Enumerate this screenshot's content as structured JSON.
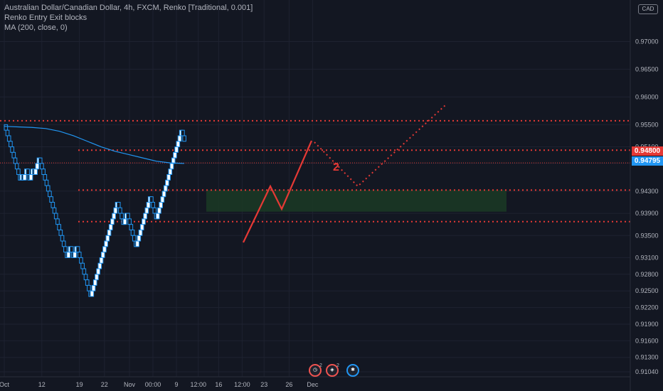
{
  "legend": {
    "title": "Australian Dollar/Canadian Dollar, 4h, FXCM, Renko [Traditional, 0.001]",
    "indicator1": "Renko Entry Exit blocks",
    "indicator2": "MA (200, close, 0)"
  },
  "currency": "CAD",
  "price_tags": {
    "last": "0.94800",
    "ma": "0.94795"
  },
  "annotation_label": "2",
  "events": [
    {
      "icon": "calendar-event-icon",
      "count": "2"
    },
    {
      "icon": "news-event-icon",
      "count": "2"
    },
    {
      "icon": "flag-event-icon",
      "count": ""
    }
  ],
  "colors": {
    "background": "#131722",
    "bull_brick_fill": "#ffffff",
    "bear_brick_fill": "#131722",
    "brick_border": "#2196f3",
    "ma_line": "#2196f3",
    "annotation": "#e53935",
    "zone": "#1b3a24",
    "grid": "#1e2230"
  },
  "chart_data": {
    "type": "renko",
    "title": "Australian Dollar/Canadian Dollar, 4h, FXCM, Renko [Traditional, 0.001]",
    "brick_size": 0.001,
    "ylim": [
      0.9095,
      0.9775
    ],
    "y_ticks": [
      "0.97000",
      "0.96500",
      "0.96000",
      "0.95500",
      "0.95100",
      "0.94800",
      "0.94300",
      "0.93900",
      "0.93500",
      "0.93100",
      "0.92800",
      "0.92500",
      "0.92200",
      "0.91900",
      "0.91600",
      "0.91300",
      "0.91040"
    ],
    "y_tick_values": [
      0.97,
      0.965,
      0.96,
      0.955,
      0.951,
      0.948,
      0.943,
      0.939,
      0.935,
      0.931,
      0.928,
      0.925,
      0.922,
      0.919,
      0.916,
      0.913,
      0.9104
    ],
    "x_ticks": [
      {
        "label": "Oct",
        "brick": 0
      },
      {
        "label": "12",
        "brick": 24
      },
      {
        "label": "19",
        "brick": 48
      },
      {
        "label": "22",
        "brick": 64
      },
      {
        "label": "Nov",
        "brick": 80
      },
      {
        "label": "00:00",
        "brick": 95
      },
      {
        "label": "9",
        "brick": 110
      },
      {
        "label": "12:00",
        "brick": 124
      },
      {
        "label": "16",
        "brick": 137
      },
      {
        "label": "12:00",
        "brick": 152
      },
      {
        "label": "23",
        "brick": 166
      },
      {
        "label": "26",
        "brick": 182
      },
      {
        "label": "Dec",
        "brick": 197
      }
    ],
    "bricks": [
      {
        "start": 0.955,
        "dir": "down",
        "moves": [
          -1,
          -1,
          -1,
          -1,
          -1,
          -1,
          -1,
          -1,
          -1,
          -1,
          1,
          -1,
          1,
          1,
          -1,
          -1,
          1,
          1,
          -1,
          1,
          1,
          1,
          -1,
          -1,
          -1,
          -1,
          -1,
          -1,
          -1,
          -1,
          -1,
          -1,
          -1,
          -1,
          -1,
          -1,
          -1,
          -1,
          -1,
          -1,
          1,
          1,
          -1,
          -1,
          1,
          1,
          -1,
          -1,
          -1,
          -1,
          -1,
          -1,
          -1,
          -1,
          -1,
          1,
          1,
          1,
          1,
          1,
          1,
          1,
          1,
          1,
          1,
          1,
          1,
          1,
          1,
          1,
          1,
          1,
          -1,
          -1,
          -1,
          -1,
          1,
          1,
          -1,
          -1,
          -1,
          -1,
          -1,
          -1,
          1,
          1,
          1,
          1,
          1,
          1,
          1,
          1,
          1,
          -1,
          -1,
          -1,
          -1,
          1,
          1,
          1,
          1,
          1,
          1,
          1,
          1,
          1,
          1,
          1,
          1,
          1,
          1,
          1,
          1,
          -1,
          -1
        ]
      }
    ],
    "ma_200": [
      0.9547,
      0.9546,
      0.9545,
      0.9543,
      0.9538,
      0.953,
      0.952,
      0.951,
      0.9502,
      0.9496,
      0.949,
      0.9484,
      0.9481,
      0.948
    ],
    "horizontal_levels": [
      0.9557,
      0.9504,
      0.9481,
      0.9432,
      0.9375
    ],
    "zone": {
      "from": 0.9432,
      "to": 0.9393
    },
    "x_count": 198
  }
}
